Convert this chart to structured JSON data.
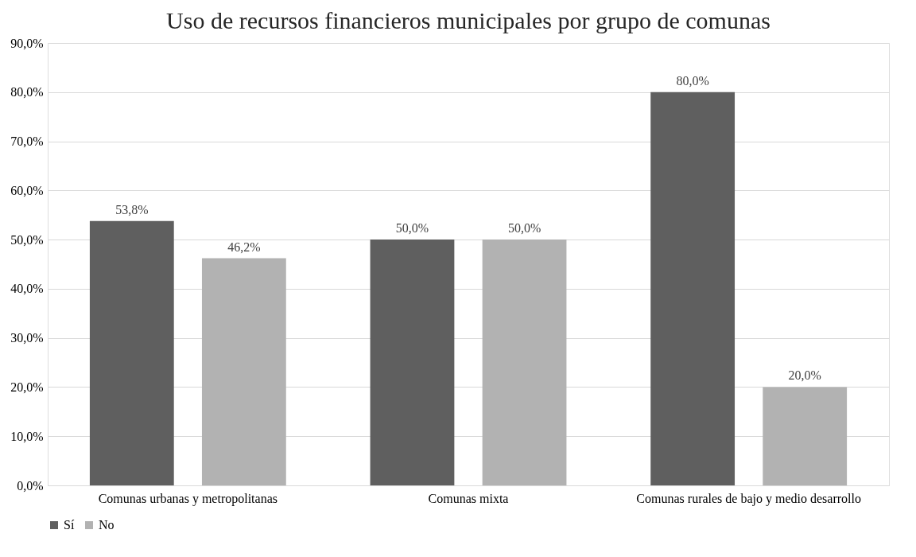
{
  "chart_data": {
    "type": "bar",
    "title": "Uso de recursos financieros municipales por grupo de comunas",
    "categories": [
      "Comunas urbanas y metropolitanas",
      "Comunas mixta",
      "Comunas rurales de bajo y medio desarrollo"
    ],
    "series": [
      {
        "name": "Sí",
        "color": "#5f5f5f",
        "values": [
          53.8,
          50.0,
          80.0
        ],
        "value_labels": [
          "53,8%",
          "50,0%",
          "80,0%"
        ]
      },
      {
        "name": "No",
        "color": "#b2b2b2",
        "values": [
          46.2,
          50.0,
          20.0
        ],
        "value_labels": [
          "46,2%",
          "50,0%",
          "20,0%"
        ]
      }
    ],
    "ylim": [
      0,
      90
    ],
    "yticks": [
      {
        "value": 0,
        "label": "0,0%"
      },
      {
        "value": 10,
        "label": "10,0%"
      },
      {
        "value": 20,
        "label": "20,0%"
      },
      {
        "value": 30,
        "label": "30,0%"
      },
      {
        "value": 40,
        "label": "40,0%"
      },
      {
        "value": 50,
        "label": "50,0%"
      },
      {
        "value": 60,
        "label": "60,0%"
      },
      {
        "value": 70,
        "label": "70,0%"
      },
      {
        "value": 80,
        "label": "80,0%"
      },
      {
        "value": 90,
        "label": "90,0%"
      }
    ],
    "grid": "y",
    "legend": "bottom"
  }
}
